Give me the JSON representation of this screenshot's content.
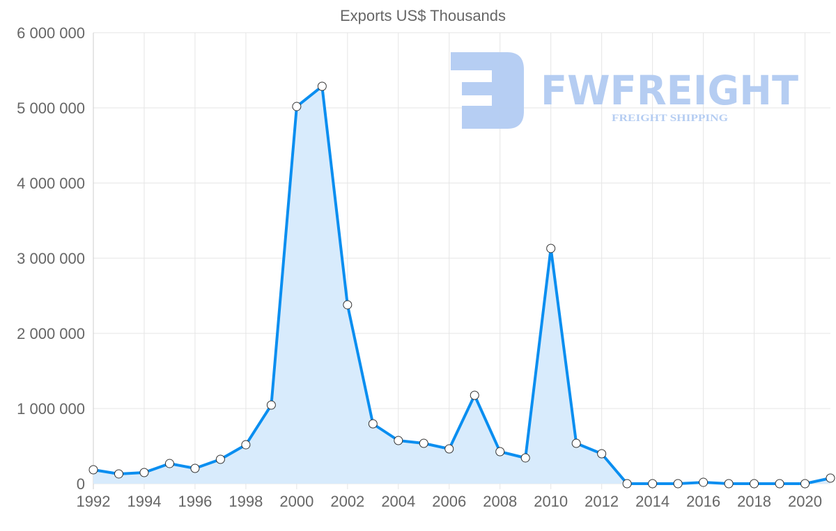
{
  "chart_data": {
    "type": "line",
    "title": "Exports US$ Thousands",
    "xlabel": "",
    "ylabel": "",
    "x": [
      1992,
      1993,
      1994,
      1995,
      1996,
      1997,
      1998,
      1999,
      2000,
      2001,
      2002,
      2003,
      2004,
      2005,
      2006,
      2007,
      2008,
      2009,
      2010,
      2011,
      2012,
      2013,
      2014,
      2015,
      2016,
      2017,
      2018,
      2019,
      2020,
      2021
    ],
    "series": [
      {
        "name": "Exports US$ Thousands",
        "values": [
          185000,
          130000,
          148000,
          268000,
          204000,
          324000,
          518000,
          1046000,
          5018000,
          5287000,
          2380000,
          796000,
          574000,
          537000,
          463000,
          1176000,
          426000,
          343000,
          3130000,
          537000,
          398000,
          0,
          0,
          0,
          18000,
          0,
          0,
          0,
          0,
          74000
        ]
      }
    ],
    "ylim": [
      0,
      6000000
    ],
    "xlim": [
      1992,
      2021
    ],
    "y_ticks": [
      "0",
      "1 000 000",
      "2 000 000",
      "3 000 000",
      "4 000 000",
      "5 000 000",
      "6 000 000"
    ],
    "x_ticks": [
      "1992",
      "1994",
      "1996",
      "1998",
      "2000",
      "2002",
      "2004",
      "2006",
      "2008",
      "2010",
      "2012",
      "2014",
      "2016",
      "2018",
      "2020"
    ],
    "grid": true,
    "fill": true,
    "colors": {
      "line": "#0a8ef0",
      "fill": "#d8ebfc",
      "grid": "#e5e5e5",
      "point_fill": "#ffffff",
      "point_stroke": "#333333"
    }
  },
  "watermark": {
    "brand": "FWFREIGHT",
    "tagline": "FREIGHT SHIPPING"
  }
}
